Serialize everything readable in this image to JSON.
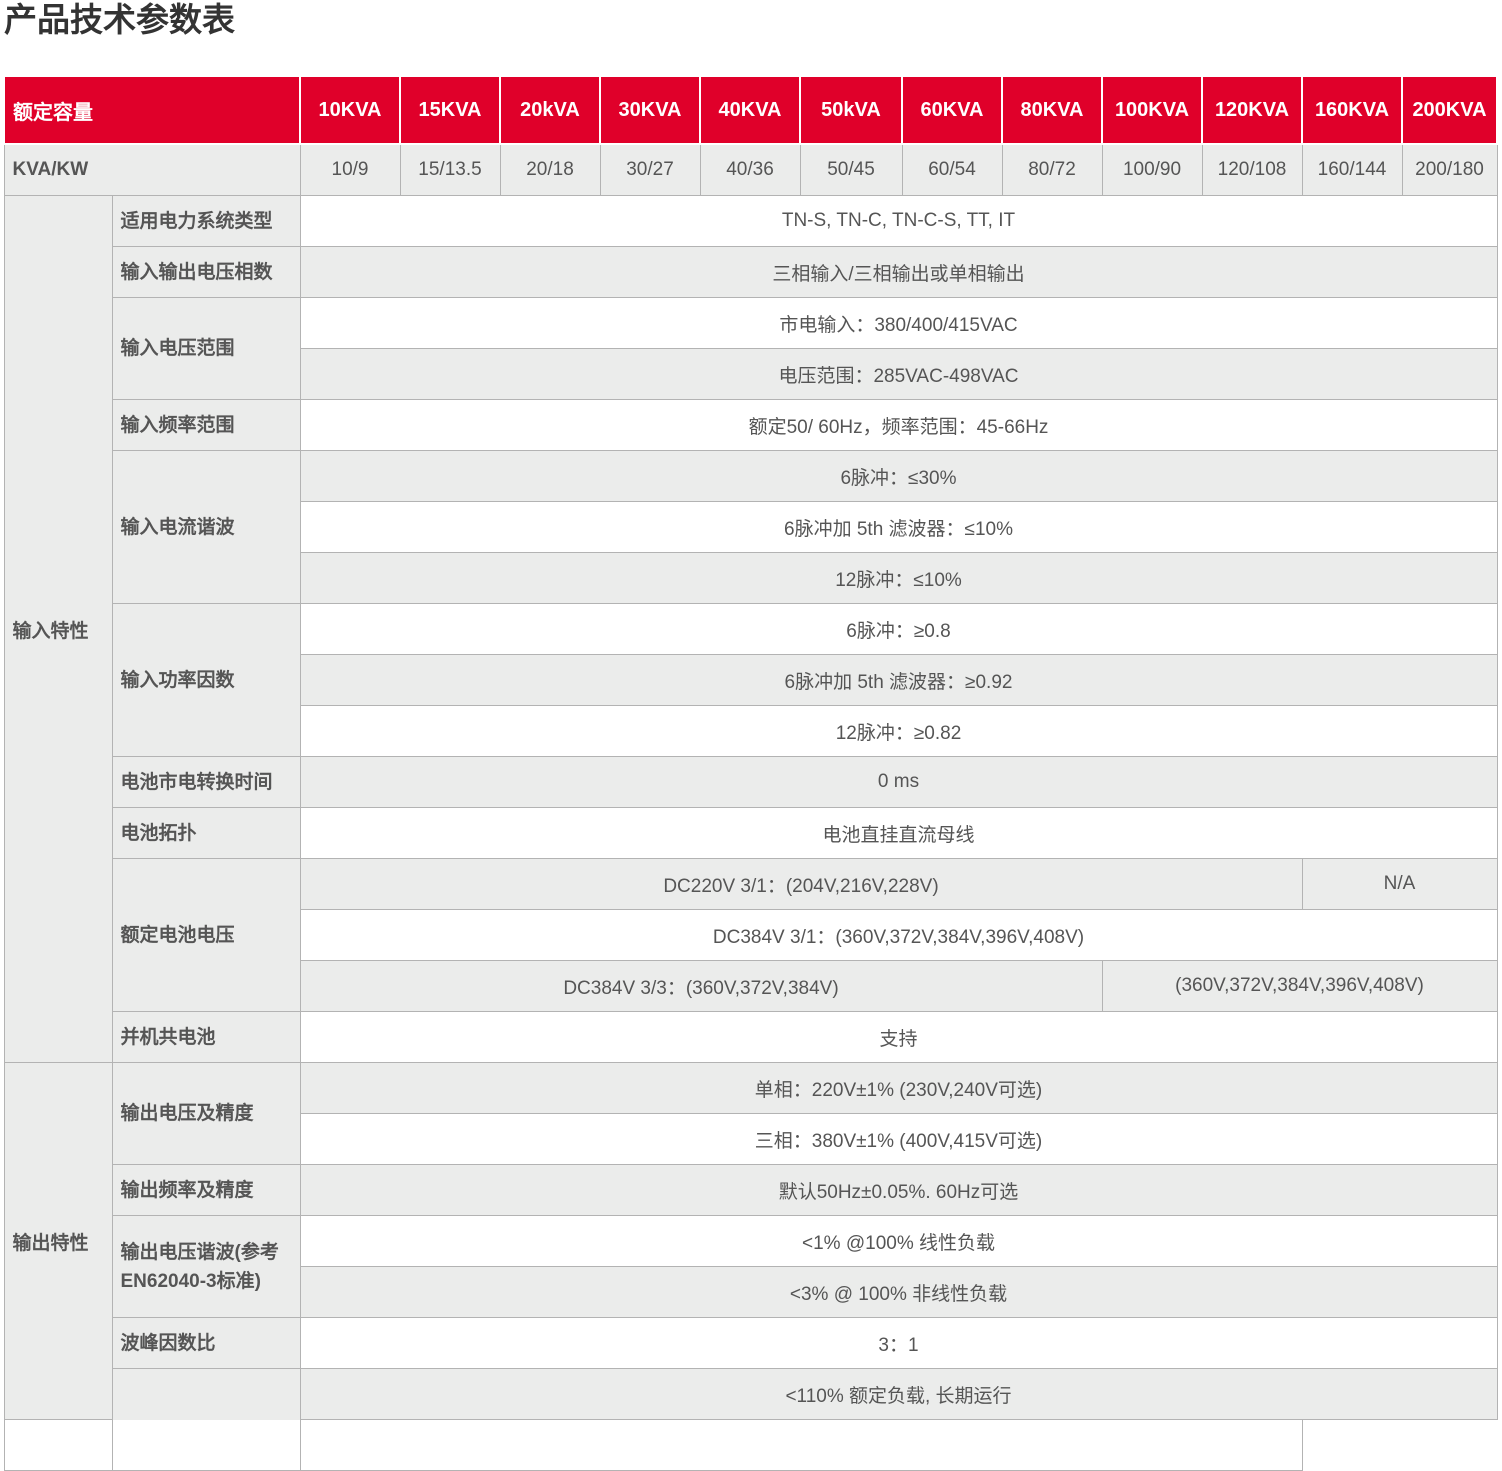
{
  "title": "产品技术参数表",
  "header": {
    "label": "额定容量",
    "capacities": [
      "10KVA",
      "15KVA",
      "20kVA",
      "30KVA",
      "40KVA",
      "50kVA",
      "60KVA",
      "80KVA",
      "100KVA",
      "120KVA",
      "160KVA",
      "200KVA"
    ]
  },
  "kva": {
    "label": "KVA/KW",
    "values": [
      "10/9",
      "15/13.5",
      "20/18",
      "30/27",
      "40/36",
      "50/45",
      "60/54",
      "80/72",
      "100/90",
      "120/108",
      "160/144",
      "200/180"
    ]
  },
  "input": {
    "label": "输入特性",
    "power_system": {
      "label": "适用电力系统类型",
      "value": "TN-S, TN-C, TN-C-S, TT, IT"
    },
    "phases": {
      "label": "输入输出电压相数",
      "value": "三相输入/三相输出或单相输出"
    },
    "voltage_range": {
      "label": "输入电压范围",
      "values": [
        "市电输入：380/400/415VAC",
        "电压范围：285VAC-498VAC"
      ]
    },
    "freq_range": {
      "label": "输入频率范围",
      "value": "额定50/ 60Hz，频率范围：45-66Hz"
    },
    "current_harmonic": {
      "label": "输入电流谐波",
      "values": [
        "6脉冲：≤30%",
        "6脉冲加 5th 滤波器：≤10%",
        "12脉冲：≤10%"
      ]
    },
    "power_factor": {
      "label": "输入功率因数",
      "values": [
        "6脉冲：≥0.8",
        "6脉冲加 5th 滤波器：≥0.92",
        "12脉冲：≥0.82"
      ]
    },
    "transfer_time": {
      "label": "电池市电转换时间",
      "value": "0 ms"
    },
    "battery_topology": {
      "label": "电池拓扑",
      "value": "电池直挂直流母线"
    },
    "battery_voltage": {
      "label": "额定电池电压",
      "dc220": "DC220V 3/1：(204V,216V,228V)",
      "dc220_na": "N/A",
      "dc384_31": "DC384V 3/1：(360V,372V,384V,396V,408V)",
      "dc384_33": "DC384V 3/3：(360V,372V,384V)",
      "dc384_33_large": "(360V,372V,384V,396V,408V)"
    },
    "shared_battery": {
      "label": "并机共电池",
      "value": "支持"
    }
  },
  "output": {
    "label": "输出特性",
    "voltage_accuracy": {
      "label": "输出电压及精度",
      "values": [
        "单相：220V±1% (230V,240V可选)",
        "三相：380V±1% (400V,415V可选)"
      ]
    },
    "freq_accuracy": {
      "label": "输出频率及精度",
      "value": "默认50Hz±0.05%. 60Hz可选"
    },
    "voltage_harmonic": {
      "label": "输出电压谐波(参考EN62040-3标准)",
      "values": [
        "<1% @100% 线性负载",
        "<3% @ 100% 非线性负载"
      ]
    },
    "crest_factor": {
      "label": "波峰因数比",
      "value": "3：1"
    },
    "overload": {
      "values": [
        "<110% 额定负载, 长期运行"
      ]
    }
  }
}
